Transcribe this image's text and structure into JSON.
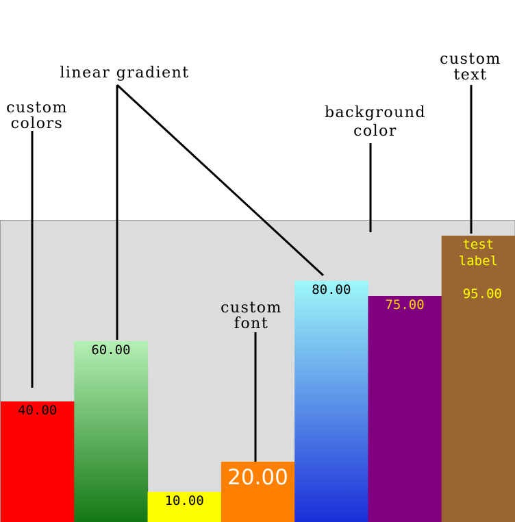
{
  "chart_data": {
    "type": "bar",
    "categories": [
      "",
      "",
      "",
      "",
      "",
      "",
      ""
    ],
    "series": [
      {
        "values": [
          40,
          60,
          10,
          20,
          80,
          75,
          95
        ]
      }
    ],
    "ylim": [
      0,
      100
    ],
    "background_color": "#dcdcdc",
    "grid": false,
    "legend": "none",
    "data_labels": [
      "40.00",
      "60.00",
      "10.00",
      "20.00",
      "80.00",
      "75.00",
      "95.00"
    ],
    "bar_styles": [
      {
        "fill": "#ff0000",
        "label_color": "#000000"
      },
      {
        "gradient": [
          "#b4f0b4",
          "#147814"
        ],
        "label_color": "#000000"
      },
      {
        "fill": "#ffff00",
        "label_color": "#000000"
      },
      {
        "fill": "#ff7f00",
        "label_color": "#ffffff",
        "label_font": "large-sans"
      },
      {
        "gradient": [
          "#9ef8f8",
          "#1a2ed8"
        ],
        "label_color": "#000000"
      },
      {
        "fill": "#800080",
        "label_color": "#ffd700"
      },
      {
        "fill": "#996633",
        "label_color": "#ffff00",
        "custom_text": [
          "test",
          "label"
        ]
      }
    ],
    "annotations": [
      {
        "text": [
          "custom",
          "colors"
        ],
        "target_bar": 0
      },
      {
        "text": [
          "linear gradient"
        ],
        "target_bars": [
          1,
          4
        ]
      },
      {
        "text": [
          "custom",
          "font"
        ],
        "target_bar": 3
      },
      {
        "text": [
          "background",
          "color"
        ],
        "target": "plot-background"
      },
      {
        "text": [
          "custom",
          "text"
        ],
        "target_bar": 6
      }
    ]
  }
}
